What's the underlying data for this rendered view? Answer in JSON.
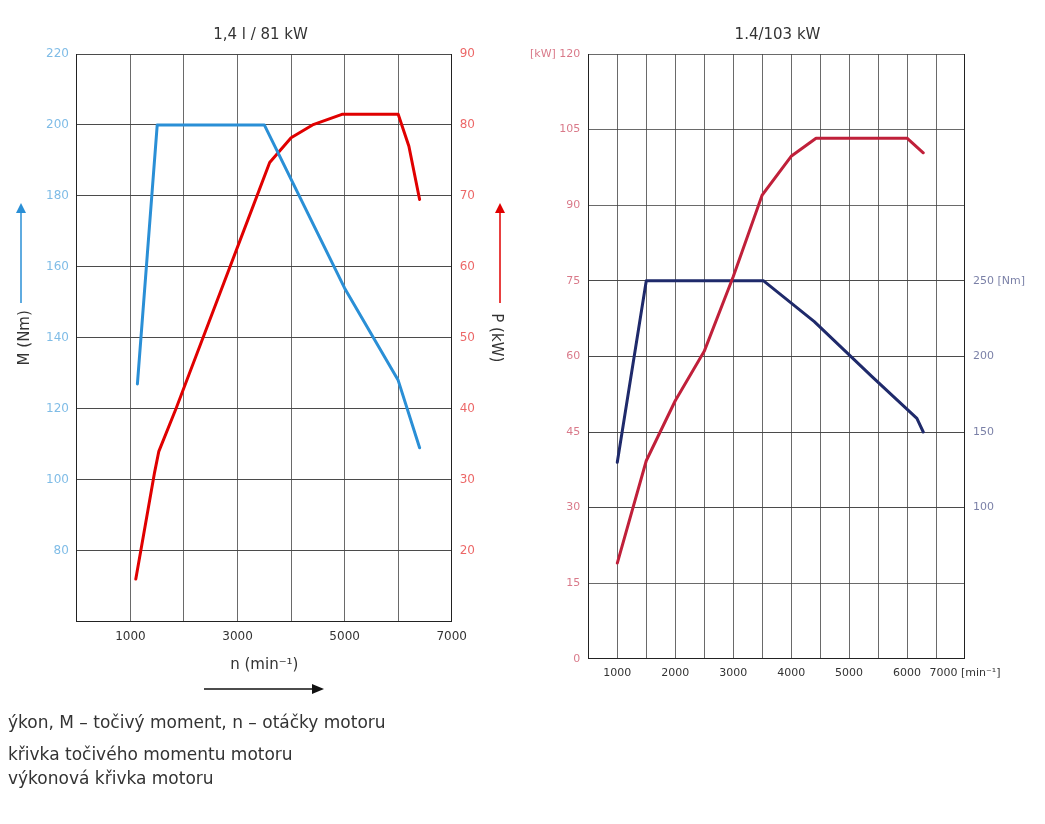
{
  "chart_data": [
    {
      "type": "line",
      "title": "1,4 l / 81 kW",
      "xlabel": "n (min⁻¹)",
      "ylabel": "M (Nm)",
      "y2label": "P (kW)",
      "xlim": [
        0,
        7000
      ],
      "xticks": [
        1000,
        {
          "value": 2000,
          "label": null
        },
        3000,
        {
          "value": 4000,
          "label": null
        },
        5000,
        {
          "value": 6000,
          "label": null
        },
        7000
      ],
      "ylim": [
        60,
        220
      ],
      "yticks": [
        80,
        100,
        120,
        140,
        160,
        180,
        200,
        220
      ],
      "y2lim": [
        10,
        90
      ],
      "y2ticks": [
        20,
        30,
        40,
        50,
        60,
        70,
        80,
        90
      ],
      "grid": true,
      "legend": false,
      "marker": "none",
      "line_style": "solid",
      "series": [
        {
          "color": "#2a8fd6",
          "x": [
            1130,
            1500,
            3500,
            5000,
            6000,
            6400
          ],
          "values": [
            127,
            200,
            200,
            154,
            128,
            109
          ]
        },
        {
          "color": "#e00000",
          "axis": "y2",
          "x": [
            1100,
            1450,
            1530,
            1850,
            3600,
            4000,
            4400,
            4950,
            6000,
            6200,
            6400
          ],
          "values": [
            16,
            31,
            34,
            40,
            74.7,
            78.2,
            80,
            81.5,
            81.5,
            77,
            69.5
          ]
        }
      ],
      "annotations": [
        "ýkon, M – točivý moment, n – otáčky motoru",
        "křivka točivého momentu motoru",
        "výkonová křivka motoru"
      ]
    },
    {
      "type": "line",
      "title": "1.4/103 kW",
      "xlim": [
        500,
        7000
      ],
      "xticks": [
        1000,
        {
          "value": 1500,
          "label": null
        },
        2000,
        {
          "value": 2500,
          "label": null
        },
        3000,
        {
          "value": 3500,
          "label": null
        },
        4000,
        {
          "value": 4500,
          "label": null
        },
        5000,
        {
          "value": 5500,
          "label": null
        },
        6000,
        {
          "value": 6500,
          "label": null
        },
        {
          "value": 7000,
          "label": "7000 [min⁻¹]"
        }
      ],
      "ylim": [
        0,
        120
      ],
      "yticks": [
        0,
        15,
        30,
        45,
        60,
        75,
        90,
        105,
        {
          "value": 120,
          "label": "[kW] 120"
        }
      ],
      "y2lim": [
        0,
        400
      ],
      "y2ticks": [
        100,
        150,
        200,
        {
          "value": 250,
          "label": "250 [Nm]"
        }
      ],
      "grid": true,
      "legend": false,
      "marker": "none",
      "line_style": "solid",
      "series": [
        {
          "color": "#c0203a",
          "x": [
            1000,
            1500,
            2000,
            2500,
            3000,
            3500,
            4000,
            4430,
            6000,
            6280
          ],
          "values": [
            19,
            39.3,
            51.2,
            61,
            75.8,
            92,
            99.7,
            103.3,
            103.3,
            100.4
          ]
        },
        {
          "color": "#1f2a6b",
          "axis": "y2",
          "x": [
            1000,
            1500,
            3525,
            4400,
            5400,
            6170,
            6280
          ],
          "values": [
            130,
            250,
            250,
            223,
            186.5,
            159,
            150
          ]
        }
      ]
    }
  ]
}
